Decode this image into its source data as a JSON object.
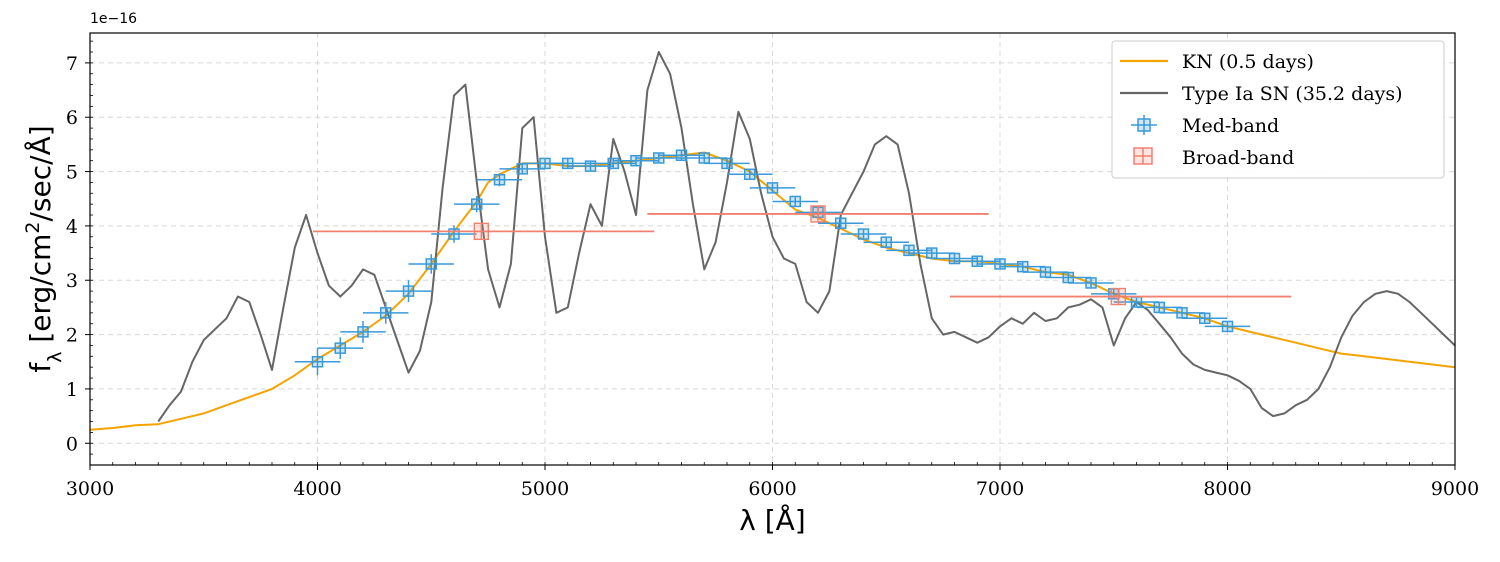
{
  "chart_data": {
    "type": "line",
    "xlabel": "λ [Å]",
    "ylabel_main": "f",
    "ylabel_sub": "λ",
    "ylabel_rest": " [erg/cm",
    "ylabel_sup": "2",
    "ylabel_end": "/sec/Å]",
    "y_offset_label": "1e−16",
    "xlim": [
      3000,
      9000
    ],
    "ylim": [
      -0.4,
      7.55
    ],
    "xticks": [
      3000,
      4000,
      5000,
      6000,
      7000,
      8000,
      9000
    ],
    "yticks": [
      0,
      1,
      2,
      3,
      4,
      5,
      6,
      7
    ],
    "grid": true,
    "legend_position": "top-right",
    "legend": [
      {
        "label": "KN (0.5 days)",
        "kind": "line",
        "color": "#f5a300"
      },
      {
        "label": "Type Ia SN (35.2 days)",
        "kind": "line",
        "color": "#666666"
      },
      {
        "label": "Med-band",
        "kind": "marker",
        "color": "#3a9ad9"
      },
      {
        "label": "Broad-band",
        "kind": "marker",
        "color": "#f08070"
      }
    ],
    "series": [
      {
        "name": "KN (0.5 days)",
        "color": "#f5a300",
        "x": [
          3000,
          3100,
          3200,
          3300,
          3400,
          3500,
          3600,
          3700,
          3800,
          3900,
          4000,
          4100,
          4200,
          4300,
          4400,
          4500,
          4600,
          4700,
          4750,
          4800,
          4900,
          5000,
          5100,
          5200,
          5300,
          5400,
          5500,
          5600,
          5700,
          5800,
          5900,
          6000,
          6100,
          6200,
          6300,
          6400,
          6500,
          6600,
          6700,
          6800,
          6900,
          7000,
          7100,
          7200,
          7300,
          7400,
          7500,
          7600,
          7700,
          7800,
          7900,
          8000,
          8100,
          8200,
          8300,
          8400,
          8500,
          8600,
          8700,
          8800,
          8900,
          9000
        ],
        "y": [
          0.25,
          0.28,
          0.33,
          0.35,
          0.45,
          0.55,
          0.7,
          0.85,
          1.0,
          1.25,
          1.55,
          1.8,
          2.05,
          2.35,
          2.75,
          3.3,
          3.9,
          4.45,
          4.8,
          4.95,
          5.15,
          5.15,
          5.1,
          5.1,
          5.15,
          5.2,
          5.25,
          5.3,
          5.35,
          5.2,
          5.0,
          4.65,
          4.3,
          4.15,
          3.95,
          3.75,
          3.6,
          3.5,
          3.4,
          3.35,
          3.35,
          3.3,
          3.25,
          3.15,
          3.1,
          2.95,
          2.75,
          2.6,
          2.5,
          2.4,
          2.3,
          2.15,
          2.05,
          1.95,
          1.85,
          1.75,
          1.65,
          1.6,
          1.55,
          1.5,
          1.45,
          1.4
        ]
      },
      {
        "name": "Type Ia SN (35.2 days)",
        "color": "#666666",
        "x": [
          3300,
          3350,
          3400,
          3450,
          3500,
          3550,
          3600,
          3650,
          3700,
          3750,
          3800,
          3850,
          3900,
          3950,
          4000,
          4050,
          4100,
          4150,
          4200,
          4250,
          4300,
          4350,
          4400,
          4450,
          4500,
          4550,
          4600,
          4650,
          4700,
          4750,
          4800,
          4850,
          4900,
          4950,
          5000,
          5050,
          5100,
          5150,
          5200,
          5250,
          5300,
          5350,
          5400,
          5450,
          5500,
          5550,
          5600,
          5650,
          5700,
          5750,
          5800,
          5850,
          5900,
          5950,
          6000,
          6050,
          6100,
          6150,
          6200,
          6250,
          6300,
          6350,
          6400,
          6450,
          6500,
          6550,
          6600,
          6650,
          6700,
          6750,
          6800,
          6850,
          6900,
          6950,
          7000,
          7050,
          7100,
          7150,
          7200,
          7250,
          7300,
          7350,
          7400,
          7450,
          7500,
          7550,
          7600,
          7650,
          7700,
          7750,
          7800,
          7850,
          7900,
          7950,
          8000,
          8050,
          8100,
          8150,
          8200,
          8250,
          8300,
          8350,
          8400,
          8450,
          8500,
          8550,
          8600,
          8650,
          8700,
          8750,
          8800,
          8850,
          8900,
          8950,
          9000
        ],
        "y": [
          0.4,
          0.7,
          0.95,
          1.5,
          1.9,
          2.1,
          2.3,
          2.7,
          2.6,
          2.0,
          1.35,
          2.5,
          3.6,
          4.2,
          3.5,
          2.9,
          2.7,
          2.9,
          3.2,
          3.1,
          2.5,
          1.9,
          1.3,
          1.7,
          2.6,
          4.7,
          6.4,
          6.6,
          4.8,
          3.2,
          2.5,
          3.3,
          5.8,
          6.0,
          3.8,
          2.4,
          2.5,
          3.5,
          4.4,
          4.0,
          5.6,
          5.0,
          4.2,
          6.5,
          7.2,
          6.8,
          5.8,
          4.4,
          3.2,
          3.7,
          4.8,
          6.1,
          5.6,
          4.6,
          3.8,
          3.4,
          3.3,
          2.6,
          2.4,
          2.8,
          4.2,
          4.6,
          5.0,
          5.5,
          5.65,
          5.5,
          4.6,
          3.3,
          2.3,
          2.0,
          2.05,
          1.95,
          1.85,
          1.95,
          2.15,
          2.3,
          2.2,
          2.4,
          2.25,
          2.3,
          2.5,
          2.55,
          2.65,
          2.5,
          1.8,
          2.3,
          2.6,
          2.45,
          2.2,
          1.95,
          1.65,
          1.45,
          1.35,
          1.3,
          1.25,
          1.15,
          1.0,
          0.65,
          0.5,
          0.55,
          0.7,
          0.8,
          1.0,
          1.4,
          1.95,
          2.35,
          2.6,
          2.75,
          2.8,
          2.75,
          2.6,
          2.4,
          2.2,
          2.0,
          1.8
        ]
      }
    ],
    "med_band": {
      "name": "Med-band",
      "color": "#3a9ad9",
      "x": [
        4000,
        4100,
        4200,
        4300,
        4400,
        4500,
        4600,
        4700,
        4800,
        4900,
        5000,
        5100,
        5200,
        5300,
        5400,
        5500,
        5600,
        5700,
        5800,
        5900,
        6000,
        6100,
        6200,
        6300,
        6400,
        6500,
        6600,
        6700,
        6800,
        6900,
        7000,
        7100,
        7200,
        7300,
        7400,
        7500,
        7600,
        7700,
        7800,
        7900,
        8000
      ],
      "y": [
        1.5,
        1.75,
        2.05,
        2.4,
        2.8,
        3.3,
        3.85,
        4.4,
        4.85,
        5.05,
        5.15,
        5.15,
        5.1,
        5.15,
        5.2,
        5.25,
        5.3,
        5.25,
        5.15,
        4.95,
        4.7,
        4.45,
        4.25,
        4.05,
        3.85,
        3.7,
        3.55,
        3.5,
        3.4,
        3.35,
        3.3,
        3.25,
        3.15,
        3.05,
        2.95,
        2.75,
        2.6,
        2.5,
        2.4,
        2.3,
        2.15
      ],
      "x_err": 100,
      "y_err": [
        0.25,
        0.2,
        0.2,
        0.2,
        0.2,
        0.18,
        0.16,
        0.15,
        0.12,
        0.1,
        0.1,
        0.1,
        0.08,
        0.08,
        0.08,
        0.08,
        0.08,
        0.08,
        0.08,
        0.08,
        0.08,
        0.08,
        0.08,
        0.08,
        0.08,
        0.08,
        0.08,
        0.08,
        0.08,
        0.08,
        0.08,
        0.08,
        0.08,
        0.08,
        0.08,
        0.08,
        0.08,
        0.08,
        0.08,
        0.08,
        0.08
      ]
    },
    "broad_band": {
      "name": "Broad-band",
      "color": "#f08070",
      "points": [
        {
          "x": 4720,
          "y": 3.9,
          "xmin": 3980,
          "xmax": 5480
        },
        {
          "x": 6200,
          "y": 4.22,
          "xmin": 5450,
          "xmax": 6950
        },
        {
          "x": 7520,
          "y": 2.7,
          "xmin": 6780,
          "xmax": 8280
        }
      ]
    }
  }
}
